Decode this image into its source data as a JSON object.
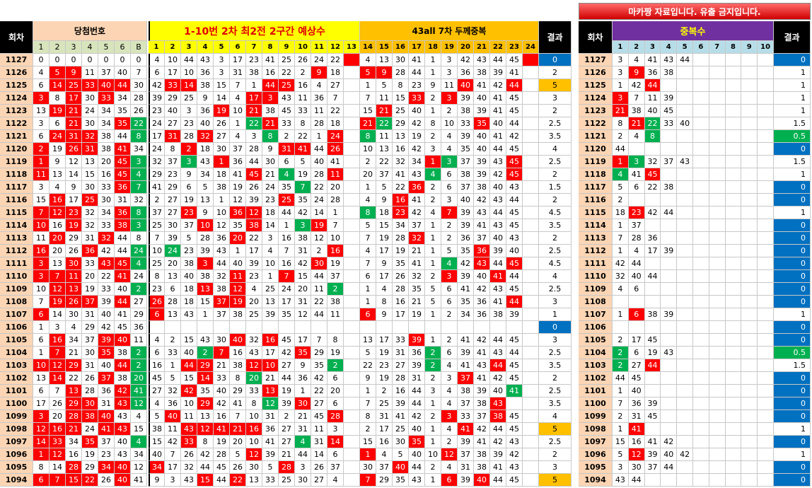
{
  "banner": "마카짱 자료입니다. 유출 금지입니다.",
  "headers": {
    "round": "회차",
    "win": "당첨번호",
    "mid": "1-10번 2차 최2전 2구간 예상수",
    "right": "43all 7차 두께중복",
    "result": "결과",
    "dup_round": "회차",
    "dup": "중복수",
    "dup_result": "결과"
  },
  "win_cols": [
    "1",
    "2",
    "3",
    "4",
    "5",
    "6",
    "B"
  ],
  "mid_cols": [
    1,
    2,
    3,
    4,
    5,
    6,
    7,
    8,
    9,
    10,
    11,
    12,
    13
  ],
  "right_cols": [
    14,
    15,
    16,
    17,
    18,
    19,
    20,
    21,
    22,
    23,
    24
  ],
  "dup_cols": [
    1,
    2,
    3,
    4,
    5,
    6,
    7,
    8,
    9,
    10
  ],
  "rows": [
    {
      "round": 1127,
      "win": [
        0,
        0,
        0,
        0,
        0,
        0,
        0
      ],
      "mid": [
        4,
        10,
        44,
        43,
        3,
        17,
        23,
        41,
        25,
        26,
        24,
        22
      ],
      "right": [
        4,
        13,
        30,
        41,
        1,
        3,
        42,
        43,
        44,
        45
      ],
      "result": 0,
      "dup": [
        3,
        4,
        41,
        43,
        44
      ],
      "dup_result": 0
    },
    {
      "round": 1126,
      "win": [
        4,
        5,
        9,
        11,
        37,
        40,
        7
      ],
      "mid": [
        6,
        17,
        10,
        36,
        3,
        31,
        38,
        16,
        22,
        2,
        9,
        18
      ],
      "right": [
        5,
        9,
        28,
        44,
        1,
        3,
        36,
        38,
        39,
        41
      ],
      "result": 2,
      "dup": [
        3,
        9,
        36,
        38
      ],
      "dup_result": 1
    },
    {
      "round": 1125,
      "win": [
        6,
        14,
        25,
        33,
        40,
        44,
        30
      ],
      "mid": [
        42,
        33,
        14,
        38,
        15,
        7,
        1,
        44,
        25,
        16,
        4,
        27
      ],
      "right": [
        1,
        5,
        8,
        23,
        9,
        11,
        40,
        41,
        42,
        44
      ],
      "result": 5,
      "dup": [
        1,
        42,
        44
      ],
      "dup_result": 1
    },
    {
      "round": 1124,
      "win": [
        3,
        8,
        17,
        30,
        33,
        34,
        28
      ],
      "mid": [
        39,
        29,
        25,
        9,
        14,
        4,
        17,
        3,
        43,
        11,
        36,
        7
      ],
      "right": [
        7,
        11,
        15,
        33,
        2,
        3,
        39,
        40,
        41,
        45
      ],
      "result": 3,
      "dup": [
        3,
        7,
        11,
        39
      ],
      "dup_result": 1
    },
    {
      "round": 1123,
      "win": [
        13,
        19,
        21,
        24,
        34,
        35,
        26
      ],
      "mid": [
        23,
        40,
        3,
        36,
        19,
        10,
        21,
        38,
        45,
        33,
        11,
        22
      ],
      "right": [
        15,
        21,
        25,
        40,
        1,
        2,
        38,
        39,
        41,
        45
      ],
      "result": 2,
      "dup": [
        21,
        38,
        40,
        45
      ],
      "dup_result": 1
    },
    {
      "round": 1122,
      "win": [
        3,
        6,
        21,
        30,
        34,
        35,
        22
      ],
      "mid": [
        24,
        27,
        23,
        40,
        26,
        1,
        22,
        21,
        33,
        8,
        28,
        18
      ],
      "right": [
        21,
        22,
        29,
        42,
        8,
        10,
        33,
        35,
        40,
        44
      ],
      "result": 2.5,
      "dup": [
        8,
        21,
        22,
        33,
        40
      ],
      "dup_result": 1.5
    },
    {
      "round": 1121,
      "win": [
        6,
        24,
        31,
        32,
        38,
        44,
        8
      ],
      "mid": [
        17,
        31,
        28,
        32,
        27,
        4,
        3,
        8,
        2,
        22,
        1,
        24
      ],
      "right": [
        8,
        11,
        13,
        19,
        2,
        4,
        39,
        40,
        41,
        42
      ],
      "result": 3.5,
      "dup": [
        2,
        4,
        8
      ],
      "dup_result": 0.5
    },
    {
      "round": 1120,
      "win": [
        2,
        19,
        26,
        31,
        38,
        41,
        34
      ],
      "mid": [
        24,
        8,
        2,
        18,
        30,
        37,
        28,
        9,
        31,
        41,
        44,
        26
      ],
      "right": [
        10,
        13,
        16,
        42,
        3,
        4,
        35,
        40,
        44,
        45
      ],
      "result": 4,
      "dup": [
        44
      ],
      "dup_result": 0
    },
    {
      "round": 1119,
      "win": [
        1,
        9,
        12,
        13,
        20,
        45,
        3
      ],
      "mid": [
        32,
        37,
        3,
        43,
        1,
        36,
        44,
        30,
        6,
        5,
        40,
        41
      ],
      "right": [
        2,
        22,
        32,
        34,
        1,
        3,
        37,
        39,
        43,
        45
      ],
      "result": 2.5,
      "dup": [
        1,
        3,
        32,
        37,
        43
      ],
      "dup_result": 1.5
    },
    {
      "round": 1118,
      "win": [
        11,
        13,
        14,
        15,
        16,
        45,
        4
      ],
      "mid": [
        29,
        23,
        9,
        34,
        18,
        41,
        45,
        21,
        4,
        19,
        28,
        11
      ],
      "right": [
        20,
        37,
        41,
        43,
        4,
        6,
        38,
        39,
        42,
        45
      ],
      "result": 2,
      "dup": [
        4,
        41,
        45
      ],
      "dup_result": 1
    },
    {
      "round": 1117,
      "win": [
        3,
        4,
        9,
        30,
        33,
        36,
        7
      ],
      "mid": [
        41,
        29,
        6,
        5,
        38,
        19,
        26,
        24,
        35,
        7,
        22,
        20
      ],
      "right": [
        1,
        5,
        22,
        36,
        2,
        6,
        37,
        38,
        40,
        43
      ],
      "result": 1.5,
      "dup": [
        5,
        6,
        22,
        38
      ],
      "dup_result": 0
    },
    {
      "round": 1116,
      "win": [
        15,
        16,
        17,
        25,
        30,
        31,
        32
      ],
      "mid": [
        2,
        27,
        19,
        13,
        1,
        12,
        39,
        23,
        25,
        35,
        24,
        28
      ],
      "right": [
        4,
        9,
        16,
        41,
        2,
        3,
        40,
        42,
        43,
        44
      ],
      "result": 2,
      "dup": [
        2
      ],
      "dup_result": 0
    },
    {
      "round": 1115,
      "win": [
        7,
        12,
        23,
        32,
        34,
        36,
        8
      ],
      "mid": [
        37,
        27,
        23,
        9,
        10,
        36,
        12,
        18,
        44,
        42,
        14,
        1
      ],
      "right": [
        8,
        18,
        23,
        42,
        4,
        7,
        39,
        43,
        44,
        45
      ],
      "result": 4.5,
      "dup": [
        18,
        23,
        42,
        44
      ],
      "dup_result": 1
    },
    {
      "round": 1114,
      "win": [
        10,
        16,
        19,
        32,
        33,
        38,
        3
      ],
      "mid": [
        25,
        30,
        37,
        10,
        12,
        35,
        38,
        14,
        1,
        3,
        19,
        7
      ],
      "right": [
        5,
        15,
        34,
        37,
        1,
        2,
        39,
        41,
        43,
        45
      ],
      "result": 3.5,
      "dup": [
        1,
        37
      ],
      "dup_result": 0
    },
    {
      "round": 1113,
      "win": [
        11,
        20,
        29,
        31,
        32,
        44,
        8
      ],
      "mid": [
        7,
        39,
        5,
        28,
        36,
        20,
        22,
        3,
        16,
        38,
        12,
        10
      ],
      "right": [
        7,
        19,
        28,
        32,
        1,
        2,
        36,
        37,
        40,
        43
      ],
      "result": 2,
      "dup": [
        7,
        28,
        36
      ],
      "dup_result": 0
    },
    {
      "round": 1112,
      "win": [
        16,
        20,
        26,
        36,
        42,
        44,
        24
      ],
      "mid": [
        10,
        24,
        23,
        39,
        43,
        1,
        17,
        4,
        7,
        31,
        2,
        16
      ],
      "right": [
        4,
        17,
        19,
        21,
        1,
        5,
        35,
        36,
        39,
        40
      ],
      "result": 2.5,
      "dup": [
        1,
        4,
        17,
        39
      ],
      "dup_result": 0
    },
    {
      "round": 1111,
      "win": [
        3,
        13,
        30,
        33,
        43,
        45,
        4
      ],
      "mid": [
        25,
        20,
        38,
        3,
        44,
        40,
        39,
        10,
        16,
        42,
        30,
        19
      ],
      "right": [
        7,
        9,
        35,
        41,
        1,
        4,
        42,
        43,
        44,
        45
      ],
      "result": 4.5,
      "dup": [
        42,
        44
      ],
      "dup_result": 0
    },
    {
      "round": 1110,
      "win": [
        3,
        7,
        11,
        20,
        22,
        41,
        24
      ],
      "mid": [
        8,
        13,
        40,
        38,
        32,
        11,
        23,
        1,
        7,
        15,
        44,
        37
      ],
      "right": [
        6,
        17,
        26,
        32,
        2,
        3,
        39,
        40,
        41,
        44
      ],
      "result": 4,
      "dup": [
        32,
        40,
        44
      ],
      "dup_result": 0
    },
    {
      "round": 1109,
      "win": [
        10,
        12,
        13,
        19,
        33,
        40,
        2
      ],
      "mid": [
        23,
        6,
        18,
        13,
        38,
        12,
        4,
        25,
        24,
        20,
        11,
        2
      ],
      "right": [
        1,
        4,
        28,
        35,
        5,
        6,
        41,
        42,
        43,
        45
      ],
      "result": 2.5,
      "dup": [
        4,
        6
      ],
      "dup_result": 0
    },
    {
      "round": 1108,
      "win": [
        7,
        19,
        26,
        37,
        39,
        44,
        27
      ],
      "mid": [
        26,
        28,
        18,
        15,
        37,
        19,
        20,
        13,
        17,
        31,
        22,
        38
      ],
      "right": [
        1,
        8,
        16,
        21,
        5,
        6,
        35,
        36,
        41,
        44
      ],
      "result": 3,
      "dup": [],
      "dup_result": 0
    },
    {
      "round": 1107,
      "win": [
        6,
        14,
        30,
        31,
        40,
        41,
        29
      ],
      "mid": [
        6,
        13,
        43,
        1,
        37,
        38,
        25,
        39,
        35,
        12,
        44,
        11
      ],
      "right": [
        6,
        9,
        17,
        19,
        1,
        2,
        34,
        36,
        38,
        39
      ],
      "result": 1,
      "dup": [
        1,
        6,
        38,
        39
      ],
      "dup_result": 1
    },
    {
      "round": 1106,
      "win": [
        1,
        3,
        4,
        29,
        42,
        45,
        36
      ],
      "mid": [],
      "right": [],
      "result": 0,
      "dup": [],
      "dup_result": 0
    },
    {
      "round": 1105,
      "win": [
        6,
        16,
        34,
        37,
        39,
        40,
        11
      ],
      "mid": [
        4,
        2,
        15,
        43,
        30,
        40,
        32,
        16,
        45,
        17,
        7,
        8
      ],
      "right": [
        13,
        17,
        33,
        39,
        1,
        2,
        41,
        42,
        44,
        45
      ],
      "result": 3,
      "dup": [
        2,
        17,
        45
      ],
      "dup_result": 0
    },
    {
      "round": 1104,
      "win": [
        1,
        7,
        21,
        30,
        35,
        38,
        2
      ],
      "mid": [
        6,
        33,
        40,
        2,
        7,
        16,
        43,
        17,
        42,
        35,
        29,
        19
      ],
      "right": [
        5,
        19,
        31,
        36,
        2,
        6,
        39,
        41,
        43,
        44
      ],
      "result": 2.5,
      "dup": [
        2,
        6,
        19,
        43
      ],
      "dup_result": 0.5
    },
    {
      "round": 1103,
      "win": [
        10,
        12,
        29,
        31,
        40,
        44,
        2
      ],
      "mid": [
        16,
        1,
        44,
        29,
        21,
        38,
        12,
        10,
        27,
        9,
        35,
        2
      ],
      "right": [
        22,
        23,
        27,
        39,
        2,
        4,
        41,
        43,
        44,
        45
      ],
      "result": 3.5,
      "dup": [
        2,
        27,
        44
      ],
      "dup_result": 1.5
    },
    {
      "round": 1102,
      "win": [
        13,
        14,
        22,
        26,
        37,
        38,
        20
      ],
      "mid": [
        45,
        5,
        15,
        14,
        33,
        8,
        20,
        21,
        44,
        36,
        42,
        6
      ],
      "right": [
        9,
        19,
        28,
        31,
        2,
        3,
        37,
        41,
        42,
        45
      ],
      "result": 2,
      "dup": [
        44,
        45
      ],
      "dup_result": 0
    },
    {
      "round": 1101,
      "win": [
        6,
        7,
        13,
        28,
        36,
        42,
        41
      ],
      "mid": [
        27,
        32,
        42,
        35,
        40,
        29,
        33,
        13,
        19,
        1,
        22,
        20
      ],
      "right": [
        1,
        2,
        16,
        44,
        3,
        4,
        38,
        39,
        40,
        41
      ],
      "result": 2.5,
      "dup": [
        1,
        40
      ],
      "dup_result": 0
    },
    {
      "round": 1100,
      "win": [
        17,
        26,
        29,
        30,
        31,
        43,
        12
      ],
      "mid": [
        4,
        36,
        10,
        29,
        42,
        41,
        8,
        12,
        39,
        30,
        27,
        6
      ],
      "right": [
        7,
        25,
        39,
        44,
        1,
        4,
        37,
        38,
        43
      ],
      "result": 3.5,
      "dup": [
        7,
        36,
        39
      ],
      "dup_result": 0
    },
    {
      "round": 1099,
      "win": [
        3,
        20,
        28,
        38,
        40,
        43,
        4
      ],
      "mid": [
        5,
        40,
        11,
        13,
        16,
        7,
        10,
        31,
        2,
        21,
        45,
        28
      ],
      "right": [
        8,
        31,
        41,
        42,
        2,
        3,
        33,
        37,
        38,
        45
      ],
      "result": 4,
      "dup": [
        2,
        31,
        45
      ],
      "dup_result": 0
    },
    {
      "round": 1098,
      "win": [
        12,
        16,
        21,
        24,
        41,
        43,
        15
      ],
      "mid": [
        38,
        11,
        43,
        12,
        41,
        21,
        16,
        36,
        27,
        31,
        11,
        3
      ],
      "right": [
        2,
        17,
        25,
        40,
        1,
        4,
        41,
        42,
        44,
        45
      ],
      "result": 5,
      "dup": [
        1,
        41
      ],
      "dup_result": 1
    },
    {
      "round": 1097,
      "win": [
        14,
        33,
        34,
        35,
        37,
        40,
        4
      ],
      "mid": [
        15,
        42,
        33,
        8,
        19,
        20,
        10,
        41,
        27,
        4,
        31,
        14
      ],
      "right": [
        15,
        16,
        30,
        35,
        1,
        2,
        39,
        41,
        42,
        43
      ],
      "result": 2.5,
      "dup": [
        15,
        16,
        41,
        42
      ],
      "dup_result": 0
    },
    {
      "round": 1096,
      "win": [
        1,
        12,
        16,
        19,
        23,
        43,
        34
      ],
      "mid": [
        40,
        7,
        26,
        42,
        28,
        5,
        12,
        39,
        21,
        44,
        14,
        6
      ],
      "right": [
        1,
        4,
        5,
        40,
        10,
        12,
        37,
        38,
        39,
        42
      ],
      "result": 2,
      "dup": [
        5,
        12,
        39,
        40,
        42
      ],
      "dup_result": 1
    },
    {
      "round": 1095,
      "win": [
        8,
        14,
        28,
        29,
        34,
        40,
        12
      ],
      "mid": [
        34,
        17,
        32,
        44,
        45,
        26,
        30,
        5,
        28,
        3,
        26,
        37
      ],
      "right": [
        30,
        37,
        40,
        44,
        2,
        4,
        31,
        38,
        41,
        43
      ],
      "result": 3,
      "dup": [
        3,
        30,
        37,
        44
      ],
      "dup_result": 0
    },
    {
      "round": 1094,
      "win": [
        6,
        7,
        15,
        22,
        26,
        40,
        41
      ],
      "mid": [
        9,
        3,
        43,
        15,
        44,
        22,
        13,
        33,
        25,
        30,
        27,
        4
      ],
      "right": [
        7,
        29,
        35,
        43,
        1,
        6,
        39,
        40,
        44,
        45
      ],
      "result": 5,
      "dup": [
        43,
        44
      ],
      "dup_result": 0
    }
  ]
}
